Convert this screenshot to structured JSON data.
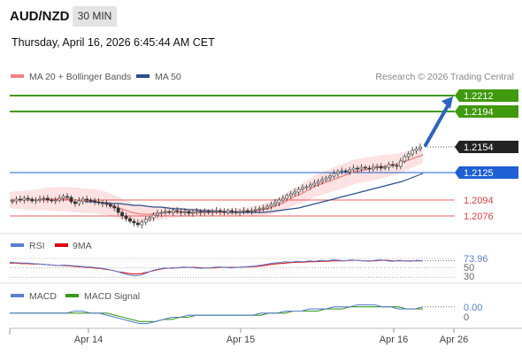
{
  "header": {
    "symbol": "AUD/NZD",
    "timeframe": "30 MIN",
    "datetime": "Thursday, April 16, 2026 6:45:44 AM CET"
  },
  "legend": {
    "ma20": {
      "label": "MA 20 + Bollinger Bands",
      "color": "#f08080"
    },
    "ma50": {
      "label": "MA 50",
      "color": "#2b4f8c"
    },
    "copyright": "Research © 2026 Trading Central"
  },
  "rsi_panel": {
    "rsi": {
      "label": "RSI",
      "color": "#5a7fcf"
    },
    "ma9": {
      "label": "9MA",
      "color": "#e00000"
    }
  },
  "macd_panel": {
    "macd": {
      "label": "MACD",
      "color": "#5a7fcf"
    },
    "signal": {
      "label": "MACD Signal",
      "color": "#3a9a1a"
    }
  },
  "chart_data": {
    "type": "line",
    "title": "",
    "price_range": [
      1.206,
      1.2225
    ],
    "levels": {
      "resistance": [
        {
          "value": 1.2212,
          "label": "1.2212",
          "color": "#3f9a0e"
        },
        {
          "value": 1.2194,
          "label": "1.2194",
          "color": "#3f9a0e"
        }
      ],
      "pivot": {
        "value": 1.2125,
        "label": "1.2125",
        "color": "#1f5fd6"
      },
      "support": [
        {
          "value": 1.2094,
          "label": "1.2094",
          "color": "#e04040"
        },
        {
          "value": 1.2076,
          "label": "1.2076",
          "color": "#e04040"
        }
      ],
      "last": {
        "value": 1.2154,
        "label": "1.2154",
        "color": "#222222"
      }
    },
    "x_labels": [
      "Apr 14",
      "Apr 15",
      "Apr 16",
      "Apr 26"
    ],
    "close": [
      1.2093,
      1.2095,
      1.2094,
      1.2096,
      1.2095,
      1.2093,
      1.2094,
      1.2095,
      1.2096,
      1.2094,
      1.2093,
      1.2094,
      1.2096,
      1.2098,
      1.2097,
      1.2092,
      1.209,
      1.2093,
      1.2095,
      1.2094,
      1.2093,
      1.2092,
      1.2091,
      1.209,
      1.2089,
      1.2087,
      1.2085,
      1.208,
      1.2076,
      1.2073,
      1.207,
      1.2068,
      1.2066,
      1.2069,
      1.2072,
      1.2074,
      1.2077,
      1.2079,
      1.208,
      1.2081,
      1.208,
      1.2082,
      1.2081,
      1.208,
      1.2081,
      1.2079,
      1.208,
      1.2081,
      1.208,
      1.2081,
      1.208,
      1.2081,
      1.2082,
      1.2081,
      1.208,
      1.2082,
      1.2081,
      1.208,
      1.2081,
      1.2082,
      1.2081,
      1.2082,
      1.2083,
      1.2084,
      1.2085,
      1.2087,
      1.2089,
      1.2091,
      1.2094,
      1.2096,
      1.2099,
      1.2101,
      1.2103,
      1.2106,
      1.2108,
      1.2109,
      1.2111,
      1.2113,
      1.2115,
      1.2117,
      1.2119,
      1.2121,
      1.2124,
      1.2126,
      1.2127,
      1.2126,
      1.2128,
      1.213,
      1.2129,
      1.2131,
      1.213,
      1.2129,
      1.2131,
      1.2132,
      1.213,
      1.2131,
      1.2134,
      1.2133,
      1.2132,
      1.2138,
      1.2143,
      1.2146,
      1.215,
      1.2152,
      1.2154
    ],
    "ma20": [
      1.2094,
      1.2094,
      1.2094,
      1.2094,
      1.2094,
      1.2094,
      1.2094,
      1.2095,
      1.2095,
      1.2095,
      1.2095,
      1.2095,
      1.2095,
      1.2094,
      1.2094,
      1.2093,
      1.2093,
      1.2093,
      1.2092,
      1.2091,
      1.209,
      1.2088,
      1.2086,
      1.2084,
      1.2082,
      1.208,
      1.2079,
      1.2078,
      1.2078,
      1.2078,
      1.2079,
      1.2079,
      1.208,
      1.208,
      1.208,
      1.208,
      1.208,
      1.208,
      1.208,
      1.208,
      1.208,
      1.208,
      1.208,
      1.208,
      1.208,
      1.208,
      1.208,
      1.208,
      1.2081,
      1.2081,
      1.2081,
      1.2082,
      1.2083,
      1.2084,
      1.2086,
      1.2088,
      1.209,
      1.2093,
      1.2096,
      1.2099,
      1.2101,
      1.2104,
      1.2107,
      1.211,
      1.2112,
      1.2114,
      1.2116,
      1.2118,
      1.212,
      1.2122,
      1.2124,
      1.2126,
      1.2127,
      1.2128,
      1.2129,
      1.213,
      1.2131,
      1.2132,
      1.2133,
      1.2134,
      1.2135,
      1.2137,
      1.2139,
      1.2141,
      1.2143,
      1.2145
    ],
    "ma50": [
      1.2092,
      1.2092,
      1.2091,
      1.2091,
      1.209,
      1.209,
      1.2089,
      1.2088,
      1.2088,
      1.2087,
      1.2086,
      1.2086,
      1.2085,
      1.2084,
      1.2084,
      1.2083,
      1.2083,
      1.2082,
      1.2082,
      1.2081,
      1.2081,
      1.208,
      1.208,
      1.208,
      1.208,
      1.208,
      1.208,
      1.2081,
      1.2082,
      1.2083,
      1.2084,
      1.2085,
      1.2087,
      1.2089,
      1.2091,
      1.2093,
      1.2095,
      1.2097,
      1.2099,
      1.2101,
      1.2103,
      1.2105,
      1.2107,
      1.2109,
      1.2111,
      1.2113,
      1.2115,
      1.2118,
      1.2121,
      1.2124
    ],
    "rsi_range": [
      25,
      85
    ],
    "rsi_ticks": [
      {
        "value": 73.96,
        "label": "73.96",
        "color": "#5a7fcf"
      },
      {
        "value": 50,
        "label": "50",
        "color": "#666666"
      },
      {
        "value": 30,
        "label": "30",
        "color": "#666666"
      }
    ],
    "rsi": [
      62,
      61,
      60,
      60,
      59,
      58,
      57,
      56,
      55,
      56,
      55,
      54,
      53,
      52,
      51,
      50,
      48,
      45,
      42,
      38,
      35,
      33,
      35,
      40,
      45,
      48,
      50,
      49,
      50,
      52,
      51,
      50,
      49,
      50,
      51,
      52,
      51,
      50,
      51,
      52,
      53,
      54,
      56,
      58,
      60,
      61,
      63,
      62,
      64,
      63,
      65,
      64,
      66,
      65,
      67,
      66,
      65,
      67,
      66,
      65,
      64,
      66,
      67,
      65,
      64,
      66,
      65,
      64,
      66,
      65
    ],
    "rsi_ma9": [
      60,
      60,
      59,
      59,
      58,
      58,
      57,
      56,
      55,
      55,
      54,
      53,
      52,
      51,
      50,
      49,
      47,
      45,
      42,
      40,
      38,
      37,
      38,
      41,
      44,
      47,
      49,
      50,
      50,
      51,
      51,
      51,
      50,
      50,
      50,
      51,
      51,
      51,
      51,
      52,
      52,
      53,
      54,
      56,
      58,
      59,
      60,
      61,
      62,
      62,
      63,
      63,
      64,
      64,
      65,
      65,
      65,
      66,
      66,
      65,
      65,
      65,
      66,
      66,
      65,
      65,
      65,
      65,
      65,
      65
    ],
    "macd_ticks": [
      {
        "value": 0.0,
        "label": "0.00",
        "color": "#5a7fcf"
      },
      {
        "value": 0,
        "label": "0",
        "color": "#666666"
      }
    ],
    "macd_range": [
      -0.0006,
      0.0005
    ],
    "macd": [
      0.0,
      0.0,
      0.0,
      0.0,
      0.0,
      0.0,
      0.0,
      0.0,
      0.0001,
      0.0001,
      0.0,
      0.0,
      -0.0001,
      -0.0002,
      -0.0003,
      -0.0004,
      -0.0005,
      -0.0005,
      -0.0004,
      -0.0003,
      -0.0002,
      -0.0002,
      -0.0001,
      -0.0001,
      -0.0001,
      -0.0001,
      -0.0001,
      -0.0001,
      -0.0001,
      -0.0001,
      -0.0001,
      0.0,
      0.0,
      0.0,
      0.0001,
      0.0001,
      0.0001,
      0.0002,
      0.0002,
      0.0002,
      0.0003,
      0.0003,
      0.0003,
      0.0004,
      0.0004,
      0.0004,
      0.0003,
      0.0003,
      0.0002,
      0.0002,
      0.0002,
      0.0003
    ],
    "macd_signal": [
      0.0,
      0.0,
      0.0,
      0.0,
      0.0,
      0.0,
      0.0,
      0.0,
      0.0,
      0.0,
      0.0,
      0.0,
      0.0,
      -0.0001,
      -0.0002,
      -0.0003,
      -0.0004,
      -0.0004,
      -0.0004,
      -0.0003,
      -0.0003,
      -0.0002,
      -0.0002,
      -0.0001,
      -0.0001,
      -0.0001,
      -0.0001,
      -0.0001,
      -0.0001,
      -0.0001,
      -0.0001,
      -0.0001,
      0.0,
      0.0,
      0.0,
      0.0001,
      0.0001,
      0.0001,
      0.0001,
      0.0002,
      0.0002,
      0.0002,
      0.0003,
      0.0003,
      0.0003,
      0.0003,
      0.0003,
      0.0003,
      0.0003,
      0.0002,
      0.0002,
      0.0002
    ]
  }
}
